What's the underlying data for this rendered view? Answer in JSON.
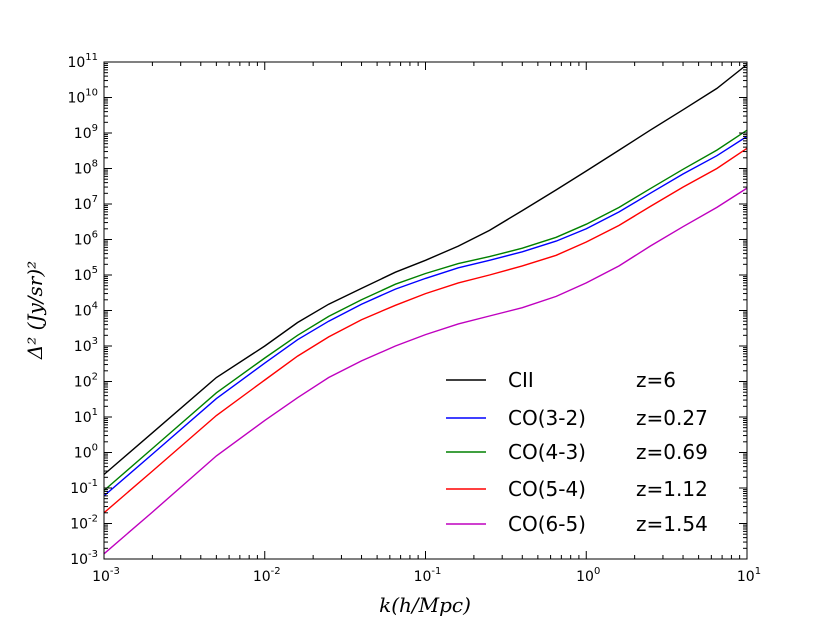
{
  "chart_data": {
    "type": "line",
    "x_scale": "log",
    "y_scale": "log",
    "xlim": [
      0.001,
      10
    ],
    "ylim": [
      0.001,
      100000000000
    ],
    "xlabel": "k(h/Mpc)",
    "ylabel": "Δ² (Jy/sr)²",
    "x_ticks": [
      {
        "base": "10",
        "exp": "-3",
        "value": 0.001
      },
      {
        "base": "10",
        "exp": "-2",
        "value": 0.01
      },
      {
        "base": "10",
        "exp": "-1",
        "value": 0.1
      },
      {
        "base": "10",
        "exp": "0",
        "value": 1
      },
      {
        "base": "10",
        "exp": "1",
        "value": 10
      }
    ],
    "y_ticks": [
      {
        "base": "10",
        "exp": "-3",
        "value": 0.001
      },
      {
        "base": "10",
        "exp": "-2",
        "value": 0.01
      },
      {
        "base": "10",
        "exp": "-1",
        "value": 0.1
      },
      {
        "base": "10",
        "exp": "0",
        "value": 1
      },
      {
        "base": "10",
        "exp": "1",
        "value": 10
      },
      {
        "base": "10",
        "exp": "2",
        "value": 100
      },
      {
        "base": "10",
        "exp": "3",
        "value": 1000
      },
      {
        "base": "10",
        "exp": "4",
        "value": 10000
      },
      {
        "base": "10",
        "exp": "5",
        "value": 100000
      },
      {
        "base": "10",
        "exp": "6",
        "value": 1000000
      },
      {
        "base": "10",
        "exp": "7",
        "value": 10000000
      },
      {
        "base": "10",
        "exp": "8",
        "value": 100000000
      },
      {
        "base": "10",
        "exp": "9",
        "value": 1000000000
      },
      {
        "base": "10",
        "exp": "10",
        "value": 10000000000
      },
      {
        "base": "10",
        "exp": "11",
        "value": 100000000000
      }
    ],
    "legend_position": "lower-right",
    "series": [
      {
        "name": "CII",
        "z": "z=6",
        "color": "#000000",
        "x": [
          0.001,
          0.002,
          0.005,
          0.01,
          0.016,
          0.025,
          0.04,
          0.065,
          0.1,
          0.16,
          0.25,
          0.4,
          0.65,
          1.0,
          1.6,
          2.5,
          4.0,
          6.5,
          10
        ],
        "y": [
          0.24,
          3.6,
          130,
          1000,
          4600,
          15000,
          42000,
          120000,
          260000,
          650000,
          1800000,
          6500000,
          25000000,
          85000000,
          330000000,
          1200000000,
          4500000000,
          18000000000,
          85000000000
        ]
      },
      {
        "name": "CO(3-2)",
        "z": "z=0.27",
        "color": "#0000ff",
        "x": [
          0.001,
          0.002,
          0.005,
          0.01,
          0.016,
          0.025,
          0.04,
          0.065,
          0.1,
          0.16,
          0.25,
          0.4,
          0.65,
          1.0,
          1.6,
          2.5,
          4.0,
          6.5,
          10
        ],
        "y": [
          0.06,
          0.9,
          33,
          330,
          1500,
          5000,
          15000,
          40000,
          80000,
          160000,
          260000,
          450000,
          900000,
          2000000,
          6000000,
          20000000,
          70000000,
          230000000,
          800000000
        ]
      },
      {
        "name": "CO(4-3)",
        "z": "z=0.69",
        "color": "#008000",
        "x": [
          0.001,
          0.002,
          0.005,
          0.01,
          0.016,
          0.025,
          0.04,
          0.065,
          0.1,
          0.16,
          0.25,
          0.4,
          0.65,
          1.0,
          1.6,
          2.5,
          4.0,
          6.5,
          10
        ],
        "y": [
          0.085,
          1.3,
          48,
          460,
          2000,
          6800,
          20000,
          55000,
          110000,
          210000,
          330000,
          570000,
          1150000,
          2700000,
          8000000,
          27000000,
          95000000,
          330000000,
          1200000000
        ]
      },
      {
        "name": "CO(5-4)",
        "z": "z=1.12",
        "color": "#ff0000",
        "x": [
          0.001,
          0.002,
          0.005,
          0.01,
          0.016,
          0.025,
          0.04,
          0.065,
          0.1,
          0.16,
          0.25,
          0.4,
          0.65,
          1.0,
          1.6,
          2.5,
          4.0,
          6.5,
          10
        ],
        "y": [
          0.02,
          0.3,
          11,
          110,
          520,
          1800,
          5500,
          14000,
          30000,
          60000,
          100000,
          180000,
          360000,
          850000,
          2500000,
          8500000,
          30000000,
          100000000,
          370000000
        ]
      },
      {
        "name": "CO(6-5)",
        "z": "z=1.54",
        "color": "#bf00bf",
        "x": [
          0.001,
          0.002,
          0.005,
          0.01,
          0.016,
          0.025,
          0.04,
          0.065,
          0.1,
          0.16,
          0.25,
          0.4,
          0.65,
          1.0,
          1.6,
          2.5,
          4.0,
          6.5,
          10
        ],
        "y": [
          0.0014,
          0.021,
          0.8,
          8,
          35,
          130,
          380,
          1000,
          2100,
          4200,
          7000,
          12000,
          25000,
          60000,
          180000,
          650000,
          2300000,
          8000000,
          28000000
        ]
      }
    ]
  }
}
